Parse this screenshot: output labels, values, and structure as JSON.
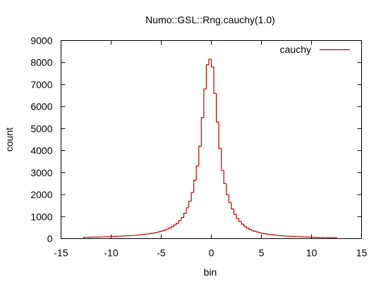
{
  "chart_data": {
    "type": "histogram",
    "title": "Numo::GSL::Rng.cauchy(1.0)",
    "xlabel": "bin",
    "ylabel": "count",
    "xlim": [
      -15,
      15
    ],
    "ylim": [
      0,
      9000
    ],
    "x_ticks": [
      -15,
      -10,
      -5,
      0,
      5,
      10,
      15
    ],
    "x_tick_labels": [
      "-15",
      "-10",
      "-5",
      "0",
      "5",
      "10",
      "15"
    ],
    "y_ticks": [
      0,
      1000,
      2000,
      3000,
      4000,
      5000,
      6000,
      7000,
      8000,
      9000
    ],
    "y_tick_labels": [
      "0",
      "1000",
      "2000",
      "3000",
      "4000",
      "5000",
      "6000",
      "7000",
      "8000",
      "9000"
    ],
    "grid": false,
    "legend_position": "top-right",
    "series": [
      {
        "name": "cauchy",
        "color": "#c00000",
        "bin_width": 0.25,
        "x": [
          -12.625,
          -12.375,
          -12.125,
          -11.875,
          -11.625,
          -11.375,
          -11.125,
          -10.875,
          -10.625,
          -10.375,
          -10.125,
          -9.875,
          -9.625,
          -9.375,
          -9.125,
          -8.875,
          -8.625,
          -8.375,
          -8.125,
          -7.875,
          -7.625,
          -7.375,
          -7.125,
          -6.875,
          -6.625,
          -6.375,
          -6.125,
          -5.875,
          -5.625,
          -5.375,
          -5.125,
          -4.875,
          -4.625,
          -4.375,
          -4.125,
          -3.875,
          -3.625,
          -3.375,
          -3.125,
          -2.875,
          -2.625,
          -2.375,
          -2.125,
          -1.875,
          -1.625,
          -1.375,
          -1.125,
          -0.875,
          -0.625,
          -0.375,
          -0.125,
          0.125,
          0.375,
          0.625,
          0.875,
          1.125,
          1.375,
          1.625,
          1.875,
          2.125,
          2.375,
          2.625,
          2.875,
          3.125,
          3.375,
          3.625,
          3.875,
          4.125,
          4.375,
          4.625,
          4.875,
          5.125,
          5.375,
          5.625,
          5.875,
          6.125,
          6.375,
          6.625,
          6.875,
          7.125,
          7.375,
          7.625,
          7.875,
          8.125,
          8.375,
          8.625,
          8.875,
          9.125,
          9.375,
          9.625,
          9.875,
          10.125,
          10.375,
          10.625,
          10.875,
          11.125,
          11.375,
          11.625,
          11.875,
          12.125,
          12.375
        ],
        "values": [
          60,
          62,
          65,
          67,
          70,
          72,
          75,
          78,
          82,
          86,
          90,
          95,
          100,
          105,
          110,
          116,
          122,
          128,
          135,
          142,
          150,
          160,
          170,
          182,
          195,
          210,
          225,
          245,
          265,
          290,
          320,
          350,
          385,
          430,
          480,
          540,
          620,
          700,
          820,
          960,
          1150,
          1400,
          1700,
          2100,
          2650,
          3300,
          4200,
          5500,
          6800,
          7900,
          8150,
          7800,
          6600,
          5300,
          4100,
          3100,
          2500,
          2000,
          1650,
          1350,
          1100,
          920,
          780,
          660,
          560,
          480,
          420,
          370,
          330,
          300,
          270,
          245,
          225,
          205,
          190,
          175,
          162,
          150,
          140,
          130,
          122,
          114,
          107,
          100,
          95,
          90,
          85,
          80,
          76,
          72,
          68,
          65,
          62,
          60,
          58,
          56,
          54,
          52,
          50,
          48,
          46
        ]
      }
    ]
  }
}
